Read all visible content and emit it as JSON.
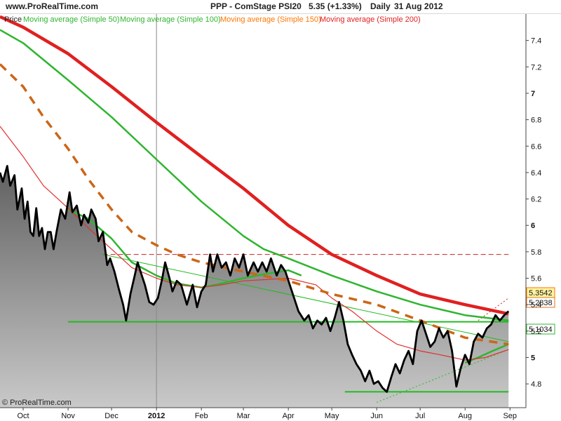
{
  "header": {
    "site": "www.ProRealTime.com",
    "title": "PPP - ComStage PSI20",
    "price_change": "5.35 (+1.33%)",
    "period": "Daily",
    "date": "31 Aug 2012"
  },
  "legend": {
    "price": "Price",
    "ma50": "Moving average (Simple 50)",
    "ma100": "Moving average (Simple 100)",
    "ma150": "Moving average (Simple 150)",
    "ma200": "Moving average (Simple 200)"
  },
  "copyright": "© ProRealTime.com",
  "colors": {
    "ma50": "#2fb52f",
    "ma100": "#e03030",
    "ma150": "#ff7700",
    "ma200": "#e02020",
    "ma150_dashed": "#cc6618",
    "price": "#000000",
    "trend_green": "#22bb22",
    "resistance_red": "#cc2222"
  },
  "chart_data": {
    "type": "line",
    "title": "PPP - ComStage PSI20",
    "ylim": [
      4.62,
      7.6
    ],
    "y_ticks": [
      {
        "value": 4.8,
        "label": "4.8"
      },
      {
        "value": 5.0,
        "label": "5"
      },
      {
        "value": 5.2,
        "label": "5.2"
      },
      {
        "value": 5.4,
        "label": "5.4"
      },
      {
        "value": 5.6,
        "label": "5.6"
      },
      {
        "value": 5.8,
        "label": "5.8"
      },
      {
        "value": 6.0,
        "label": "6"
      },
      {
        "value": 6.2,
        "label": "6.2"
      },
      {
        "value": 6.4,
        "label": "6.4"
      },
      {
        "value": 6.6,
        "label": "6.6"
      },
      {
        "value": 6.8,
        "label": "6.8"
      },
      {
        "value": 7.0,
        "label": "7"
      },
      {
        "value": 7.2,
        "label": "7.2"
      },
      {
        "value": 7.4,
        "label": "7.4"
      }
    ],
    "x_ticks": [
      {
        "label": "Oct",
        "x": "2011-10-01"
      },
      {
        "label": "Nov",
        "x": "2011-11-01"
      },
      {
        "label": "Dec",
        "x": "2011-12-01"
      },
      {
        "label": "2012",
        "x": "2012-01-01"
      },
      {
        "label": "Feb",
        "x": "2012-02-01"
      },
      {
        "label": "Mar",
        "x": "2012-03-01"
      },
      {
        "label": "Apr",
        "x": "2012-04-01"
      },
      {
        "label": "May",
        "x": "2012-05-01"
      },
      {
        "label": "Jun",
        "x": "2012-06-01"
      },
      {
        "label": "Jul",
        "x": "2012-07-01"
      },
      {
        "label": "Aug",
        "x": "2012-08-01"
      },
      {
        "label": "Sep",
        "x": "2012-09-01"
      }
    ],
    "value_labels": [
      {
        "name": "Price",
        "value": "5.35",
        "suffix": "42"
      },
      {
        "name": "Moving average (Simple 150)",
        "value": "5.2838"
      },
      {
        "name": "Moving average (Simple 50)",
        "value": "5.103",
        "suffix": "4"
      }
    ],
    "series": [
      {
        "name": "Price",
        "points": [
          [
            "2011-09-15",
            6.4
          ],
          [
            "2011-09-17",
            6.33
          ],
          [
            "2011-09-20",
            6.45
          ],
          [
            "2011-09-22",
            6.3
          ],
          [
            "2011-09-25",
            6.38
          ],
          [
            "2011-09-27",
            6.12
          ],
          [
            "2011-09-30",
            6.28
          ],
          [
            "2011-10-02",
            6.05
          ],
          [
            "2011-10-04",
            6.18
          ],
          [
            "2011-10-06",
            5.95
          ],
          [
            "2011-10-08",
            5.92
          ],
          [
            "2011-10-10",
            6.13
          ],
          [
            "2011-10-12",
            5.92
          ],
          [
            "2011-10-14",
            5.98
          ],
          [
            "2011-10-16",
            5.82
          ],
          [
            "2011-10-18",
            5.95
          ],
          [
            "2011-10-20",
            5.95
          ],
          [
            "2011-10-22",
            5.82
          ],
          [
            "2011-10-24",
            5.95
          ],
          [
            "2011-10-27",
            6.12
          ],
          [
            "2011-10-30",
            6.05
          ],
          [
            "2011-11-02",
            6.25
          ],
          [
            "2011-11-04",
            6.1
          ],
          [
            "2011-11-07",
            6.15
          ],
          [
            "2011-11-10",
            6.0
          ],
          [
            "2011-11-12",
            6.08
          ],
          [
            "2011-11-15",
            6.02
          ],
          [
            "2011-11-17",
            6.12
          ],
          [
            "2011-11-20",
            6.05
          ],
          [
            "2011-11-22",
            5.88
          ],
          [
            "2011-11-25",
            5.95
          ],
          [
            "2011-11-28",
            5.7
          ],
          [
            "2011-11-30",
            5.75
          ],
          [
            "2011-12-03",
            5.65
          ],
          [
            "2011-12-06",
            5.52
          ],
          [
            "2011-12-09",
            5.4
          ],
          [
            "2011-12-11",
            5.28
          ],
          [
            "2011-12-14",
            5.48
          ],
          [
            "2011-12-17",
            5.62
          ],
          [
            "2011-12-19",
            5.72
          ],
          [
            "2011-12-21",
            5.65
          ],
          [
            "2011-12-24",
            5.55
          ],
          [
            "2011-12-27",
            5.42
          ],
          [
            "2011-12-30",
            5.4
          ],
          [
            "2012-01-02",
            5.45
          ],
          [
            "2012-01-05",
            5.6
          ],
          [
            "2012-01-07",
            5.72
          ],
          [
            "2012-01-10",
            5.6
          ],
          [
            "2012-01-12",
            5.5
          ],
          [
            "2012-01-15",
            5.58
          ],
          [
            "2012-01-18",
            5.55
          ],
          [
            "2012-01-22",
            5.4
          ],
          [
            "2012-01-26",
            5.55
          ],
          [
            "2012-01-29",
            5.38
          ],
          [
            "2012-02-01",
            5.5
          ],
          [
            "2012-02-04",
            5.55
          ],
          [
            "2012-02-07",
            5.78
          ],
          [
            "2012-02-09",
            5.65
          ],
          [
            "2012-02-12",
            5.78
          ],
          [
            "2012-02-15",
            5.68
          ],
          [
            "2012-02-18",
            5.72
          ],
          [
            "2012-02-21",
            5.62
          ],
          [
            "2012-02-24",
            5.75
          ],
          [
            "2012-02-27",
            5.68
          ],
          [
            "2012-03-01",
            5.78
          ],
          [
            "2012-03-04",
            5.62
          ],
          [
            "2012-03-08",
            5.72
          ],
          [
            "2012-03-11",
            5.65
          ],
          [
            "2012-03-14",
            5.72
          ],
          [
            "2012-03-17",
            5.65
          ],
          [
            "2012-03-20",
            5.75
          ],
          [
            "2012-03-24",
            5.62
          ],
          [
            "2012-03-27",
            5.7
          ],
          [
            "2012-03-30",
            5.65
          ],
          [
            "2012-04-02",
            5.55
          ],
          [
            "2012-04-05",
            5.45
          ],
          [
            "2012-04-08",
            5.35
          ],
          [
            "2012-04-12",
            5.28
          ],
          [
            "2012-04-15",
            5.32
          ],
          [
            "2012-04-18",
            5.22
          ],
          [
            "2012-04-21",
            5.28
          ],
          [
            "2012-04-24",
            5.25
          ],
          [
            "2012-04-27",
            5.3
          ],
          [
            "2012-04-30",
            5.2
          ],
          [
            "2012-05-03",
            5.3
          ],
          [
            "2012-05-06",
            5.42
          ],
          [
            "2012-05-09",
            5.28
          ],
          [
            "2012-05-12",
            5.1
          ],
          [
            "2012-05-15",
            5.02
          ],
          [
            "2012-05-18",
            4.95
          ],
          [
            "2012-05-21",
            4.9
          ],
          [
            "2012-05-24",
            4.82
          ],
          [
            "2012-05-27",
            4.9
          ],
          [
            "2012-05-30",
            4.8
          ],
          [
            "2012-06-02",
            4.82
          ],
          [
            "2012-06-05",
            4.77
          ],
          [
            "2012-06-08",
            4.74
          ],
          [
            "2012-06-11",
            4.85
          ],
          [
            "2012-06-14",
            4.95
          ],
          [
            "2012-06-17",
            4.88
          ],
          [
            "2012-06-20",
            4.98
          ],
          [
            "2012-06-23",
            5.05
          ],
          [
            "2012-06-26",
            4.95
          ],
          [
            "2012-06-29",
            5.2
          ],
          [
            "2012-07-02",
            5.28
          ],
          [
            "2012-07-05",
            5.18
          ],
          [
            "2012-07-08",
            5.08
          ],
          [
            "2012-07-11",
            5.12
          ],
          [
            "2012-07-14",
            5.22
          ],
          [
            "2012-07-17",
            5.15
          ],
          [
            "2012-07-20",
            5.2
          ],
          [
            "2012-07-23",
            5.05
          ],
          [
            "2012-07-26",
            4.78
          ],
          [
            "2012-07-29",
            4.92
          ],
          [
            "2012-08-01",
            5.02
          ],
          [
            "2012-08-04",
            4.95
          ],
          [
            "2012-08-07",
            5.12
          ],
          [
            "2012-08-10",
            5.18
          ],
          [
            "2012-08-13",
            5.15
          ],
          [
            "2012-08-16",
            5.22
          ],
          [
            "2012-08-19",
            5.25
          ],
          [
            "2012-08-22",
            5.32
          ],
          [
            "2012-08-25",
            5.28
          ],
          [
            "2012-08-28",
            5.32
          ],
          [
            "2012-08-31",
            5.35
          ]
        ]
      },
      {
        "name": "Moving average (Simple 50)",
        "points": [
          [
            "2011-11-01",
            6.12
          ],
          [
            "2011-11-15",
            6.05
          ],
          [
            "2011-12-01",
            5.9
          ],
          [
            "2011-12-15",
            5.72
          ],
          [
            "2012-01-01",
            5.62
          ],
          [
            "2012-01-15",
            5.56
          ],
          [
            "2012-02-01",
            5.53
          ],
          [
            "2012-02-15",
            5.56
          ],
          [
            "2012-03-01",
            5.6
          ],
          [
            "2012-03-15",
            5.63
          ],
          [
            "2012-04-01",
            5.66
          ],
          [
            "2012-04-10",
            5.62
          ]
        ]
      },
      {
        "name": "Moving average (Simple 50)",
        "points": [
          [
            "2012-08-01",
            4.96
          ],
          [
            "2012-08-10",
            5.0
          ],
          [
            "2012-08-20",
            5.05
          ],
          [
            "2012-08-31",
            5.1
          ]
        ]
      },
      {
        "name": "Moving average (Simple 100)",
        "points": [
          [
            "2011-09-15",
            6.75
          ],
          [
            "2011-10-01",
            6.52
          ],
          [
            "2011-10-15",
            6.3
          ],
          [
            "2011-11-01",
            6.13
          ],
          [
            "2011-11-15",
            5.98
          ],
          [
            "2011-12-01",
            5.82
          ],
          [
            "2011-12-15",
            5.68
          ],
          [
            "2012-01-01",
            5.6
          ],
          [
            "2012-01-15",
            5.55
          ],
          [
            "2012-02-01",
            5.53
          ],
          [
            "2012-02-15",
            5.55
          ],
          [
            "2012-03-01",
            5.58
          ],
          [
            "2012-04-01",
            5.6
          ],
          [
            "2012-04-20",
            5.55
          ],
          [
            "2012-05-01",
            5.45
          ],
          [
            "2012-05-15",
            5.35
          ],
          [
            "2012-06-01",
            5.2
          ],
          [
            "2012-06-15",
            5.1
          ],
          [
            "2012-07-01",
            5.05
          ],
          [
            "2012-07-15",
            5.02
          ],
          [
            "2012-08-01",
            4.98
          ],
          [
            "2012-08-15",
            5.0
          ],
          [
            "2012-08-31",
            5.06
          ]
        ]
      },
      {
        "name": "Moving average (Simple 150)",
        "points": [
          [
            "2011-09-15",
            7.48
          ],
          [
            "2011-10-01",
            7.38
          ],
          [
            "2011-11-01",
            7.1
          ],
          [
            "2011-12-01",
            6.82
          ],
          [
            "2012-01-01",
            6.5
          ],
          [
            "2012-02-01",
            6.18
          ],
          [
            "2012-03-01",
            5.92
          ],
          [
            "2012-03-15",
            5.82
          ],
          [
            "2012-04-01",
            5.75
          ],
          [
            "2012-05-01",
            5.62
          ],
          [
            "2012-06-01",
            5.5
          ],
          [
            "2012-07-01",
            5.4
          ],
          [
            "2012-08-01",
            5.32
          ],
          [
            "2012-08-31",
            5.28
          ]
        ]
      },
      {
        "name": "Moving average (Simple 200)",
        "points": [
          [
            "2011-09-15",
            7.58
          ],
          [
            "2011-10-01",
            7.5
          ],
          [
            "2011-11-01",
            7.3
          ],
          [
            "2011-12-01",
            7.05
          ],
          [
            "2012-01-01",
            6.78
          ],
          [
            "2012-02-01",
            6.52
          ],
          [
            "2012-03-01",
            6.28
          ],
          [
            "2012-04-01",
            6.0
          ],
          [
            "2012-05-01",
            5.78
          ],
          [
            "2012-06-01",
            5.62
          ],
          [
            "2012-07-01",
            5.48
          ],
          [
            "2012-08-01",
            5.4
          ],
          [
            "2012-08-31",
            5.33
          ]
        ]
      },
      {
        "name": "Moving average (Simple 150)",
        "dashed": true,
        "points": [
          [
            "2011-09-15",
            7.22
          ],
          [
            "2011-10-01",
            7.05
          ],
          [
            "2011-10-15",
            6.82
          ],
          [
            "2011-11-01",
            6.58
          ],
          [
            "2011-11-15",
            6.35
          ],
          [
            "2011-12-01",
            6.12
          ],
          [
            "2011-12-15",
            5.95
          ],
          [
            "2012-01-01",
            5.85
          ],
          [
            "2012-01-15",
            5.78
          ],
          [
            "2012-02-01",
            5.72
          ],
          [
            "2012-03-01",
            5.65
          ],
          [
            "2012-04-01",
            5.58
          ],
          [
            "2012-05-01",
            5.48
          ],
          [
            "2012-06-01",
            5.4
          ],
          [
            "2012-07-01",
            5.28
          ],
          [
            "2012-08-01",
            5.15
          ],
          [
            "2012-08-31",
            5.1
          ]
        ]
      }
    ],
    "trendlines": [
      {
        "kind": "horizontal",
        "color": "green",
        "y": 5.27,
        "from": "2011-11-01",
        "to": "2012-08-31"
      },
      {
        "kind": "horizontal",
        "color": "green",
        "y": 4.74,
        "from": "2012-05-10",
        "to": "2012-08-31"
      },
      {
        "kind": "horizontal",
        "color": "red-dashed",
        "y": 5.78,
        "from": "2011-11-25",
        "to": "2012-08-31"
      },
      {
        "kind": "sloped",
        "color": "green",
        "from": [
          "2011-11-25",
          5.78
        ],
        "to": [
          "2012-08-31",
          5.12
        ]
      },
      {
        "kind": "sloped",
        "color": "green-dotted",
        "from": [
          "2012-06-01",
          4.66
        ],
        "to": [
          "2012-08-31",
          5.06
        ]
      },
      {
        "kind": "sloped",
        "color": "red-dotted",
        "from": [
          "2012-08-10",
          5.28
        ],
        "to": [
          "2012-08-31",
          5.45
        ]
      }
    ]
  }
}
